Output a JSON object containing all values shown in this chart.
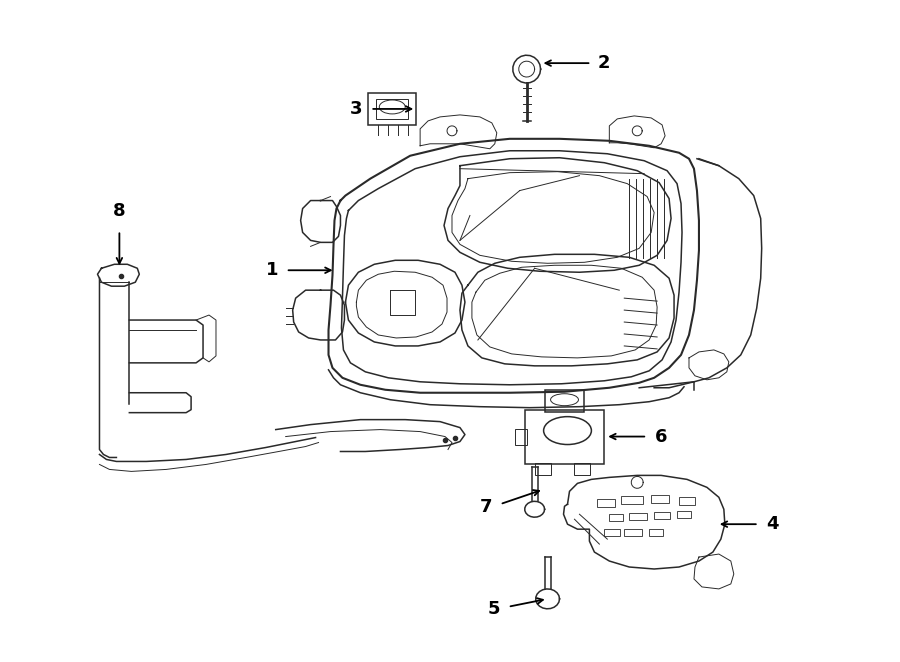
{
  "background_color": "#ffffff",
  "line_color": "#2a2a2a",
  "lw_main": 1.5,
  "lw_med": 1.1,
  "lw_thin": 0.7,
  "label_fontsize": 12,
  "label_fontsize_bold": true
}
